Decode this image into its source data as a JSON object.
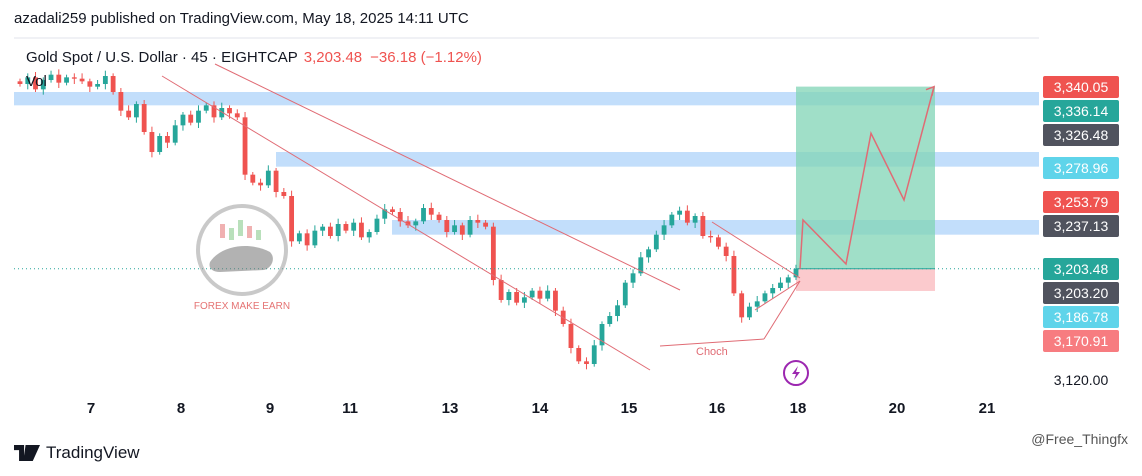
{
  "header": {
    "published": "azadali259 published on TradingView.com, May 18, 2025 14:11 UTC"
  },
  "symbol": {
    "name": "Gold Spot / U.S. Dollar · 45 · EIGHTCAP",
    "last": "3,203.48",
    "change": "−36.18 (−1.12%)",
    "volume_label": "Vol"
  },
  "logo": {
    "text": "FOREX MAKE EARN"
  },
  "annotations": {
    "choch": "Choch"
  },
  "footer": {
    "brand": "TradingView",
    "watermark": "@Free_Thingfx"
  },
  "colors": {
    "up": "#26a69a",
    "down": "#ef5350",
    "zone": "#90c2f7",
    "target": "#80d4b6",
    "stop": "#f9b8bc",
    "line": "#e06b74"
  },
  "price_labels": [
    {
      "text": "3,340.05",
      "value": 3340.05,
      "bg": "#ef5350"
    },
    {
      "text": "3,336.14",
      "value": 3336.14,
      "bg": "#26a69a"
    },
    {
      "text": "3,326.48",
      "value": 3326.48,
      "bg": "#50535e"
    },
    {
      "text": "3,278.96",
      "value": 3278.96,
      "bg": "#5fd4ea"
    },
    {
      "text": "3,253.79",
      "value": 3253.79,
      "bg": "#ef5350"
    },
    {
      "text": "3,237.13",
      "value": 3237.13,
      "bg": "#50535e"
    },
    {
      "text": "3,203.48",
      "value": 3203.48,
      "bg": "#26a69a"
    },
    {
      "text": "3,203.20",
      "value": 3203.2,
      "bg": "#50535e"
    },
    {
      "text": "3,186.78",
      "value": 3186.78,
      "bg": "#5fd4ea"
    },
    {
      "text": "3,170.91",
      "value": 3170.91,
      "bg": "#f77c80"
    },
    {
      "text": "3,120.00",
      "value": 3120.0,
      "bg": ""
    }
  ],
  "chart_data": {
    "type": "candlestick",
    "title": "Gold Spot / U.S. Dollar · 45 · EIGHTCAP",
    "x_ticks": [
      "7",
      "8",
      "9",
      "11",
      "13",
      "14",
      "15",
      "16",
      "18",
      "20",
      "21"
    ],
    "ylim": [
      3110,
      3355
    ],
    "zones": [
      {
        "from": 3326,
        "to": 3336
      },
      {
        "from": 3280,
        "to": 3291
      },
      {
        "from": 3229,
        "to": 3240
      }
    ],
    "long_position": {
      "entry": 3203.48,
      "target": 3340.05,
      "stop": 3186.78
    },
    "projected_path": [
      3203.5,
      3240,
      3207,
      3305,
      3255,
      3340
    ],
    "closes": [
      3342,
      3347,
      3338,
      3345,
      3349,
      3343,
      3347,
      3346,
      3344,
      3340,
      3342,
      3348,
      3336,
      3322,
      3317,
      3327,
      3306,
      3291,
      3303,
      3298,
      3311,
      3319,
      3313,
      3322,
      3326,
      3317,
      3324,
      3320,
      3317,
      3274,
      3268,
      3266,
      3277,
      3261,
      3258,
      3224,
      3230,
      3221,
      3232,
      3235,
      3228,
      3237,
      3232,
      3238,
      3227,
      3231,
      3241,
      3248,
      3246,
      3239,
      3236,
      3239,
      3249,
      3244,
      3240,
      3231,
      3236,
      3229,
      3240,
      3238,
      3235,
      3195,
      3180,
      3186,
      3178,
      3182,
      3187,
      3181,
      3187,
      3172,
      3162,
      3144,
      3134,
      3132,
      3146,
      3162,
      3168,
      3176,
      3193,
      3200,
      3212,
      3218,
      3229,
      3236,
      3244,
      3247,
      3238,
      3243,
      3228,
      3227,
      3220,
      3213,
      3185,
      3167,
      3175,
      3179,
      3185,
      3189,
      3193,
      3197,
      3203.48
    ]
  }
}
